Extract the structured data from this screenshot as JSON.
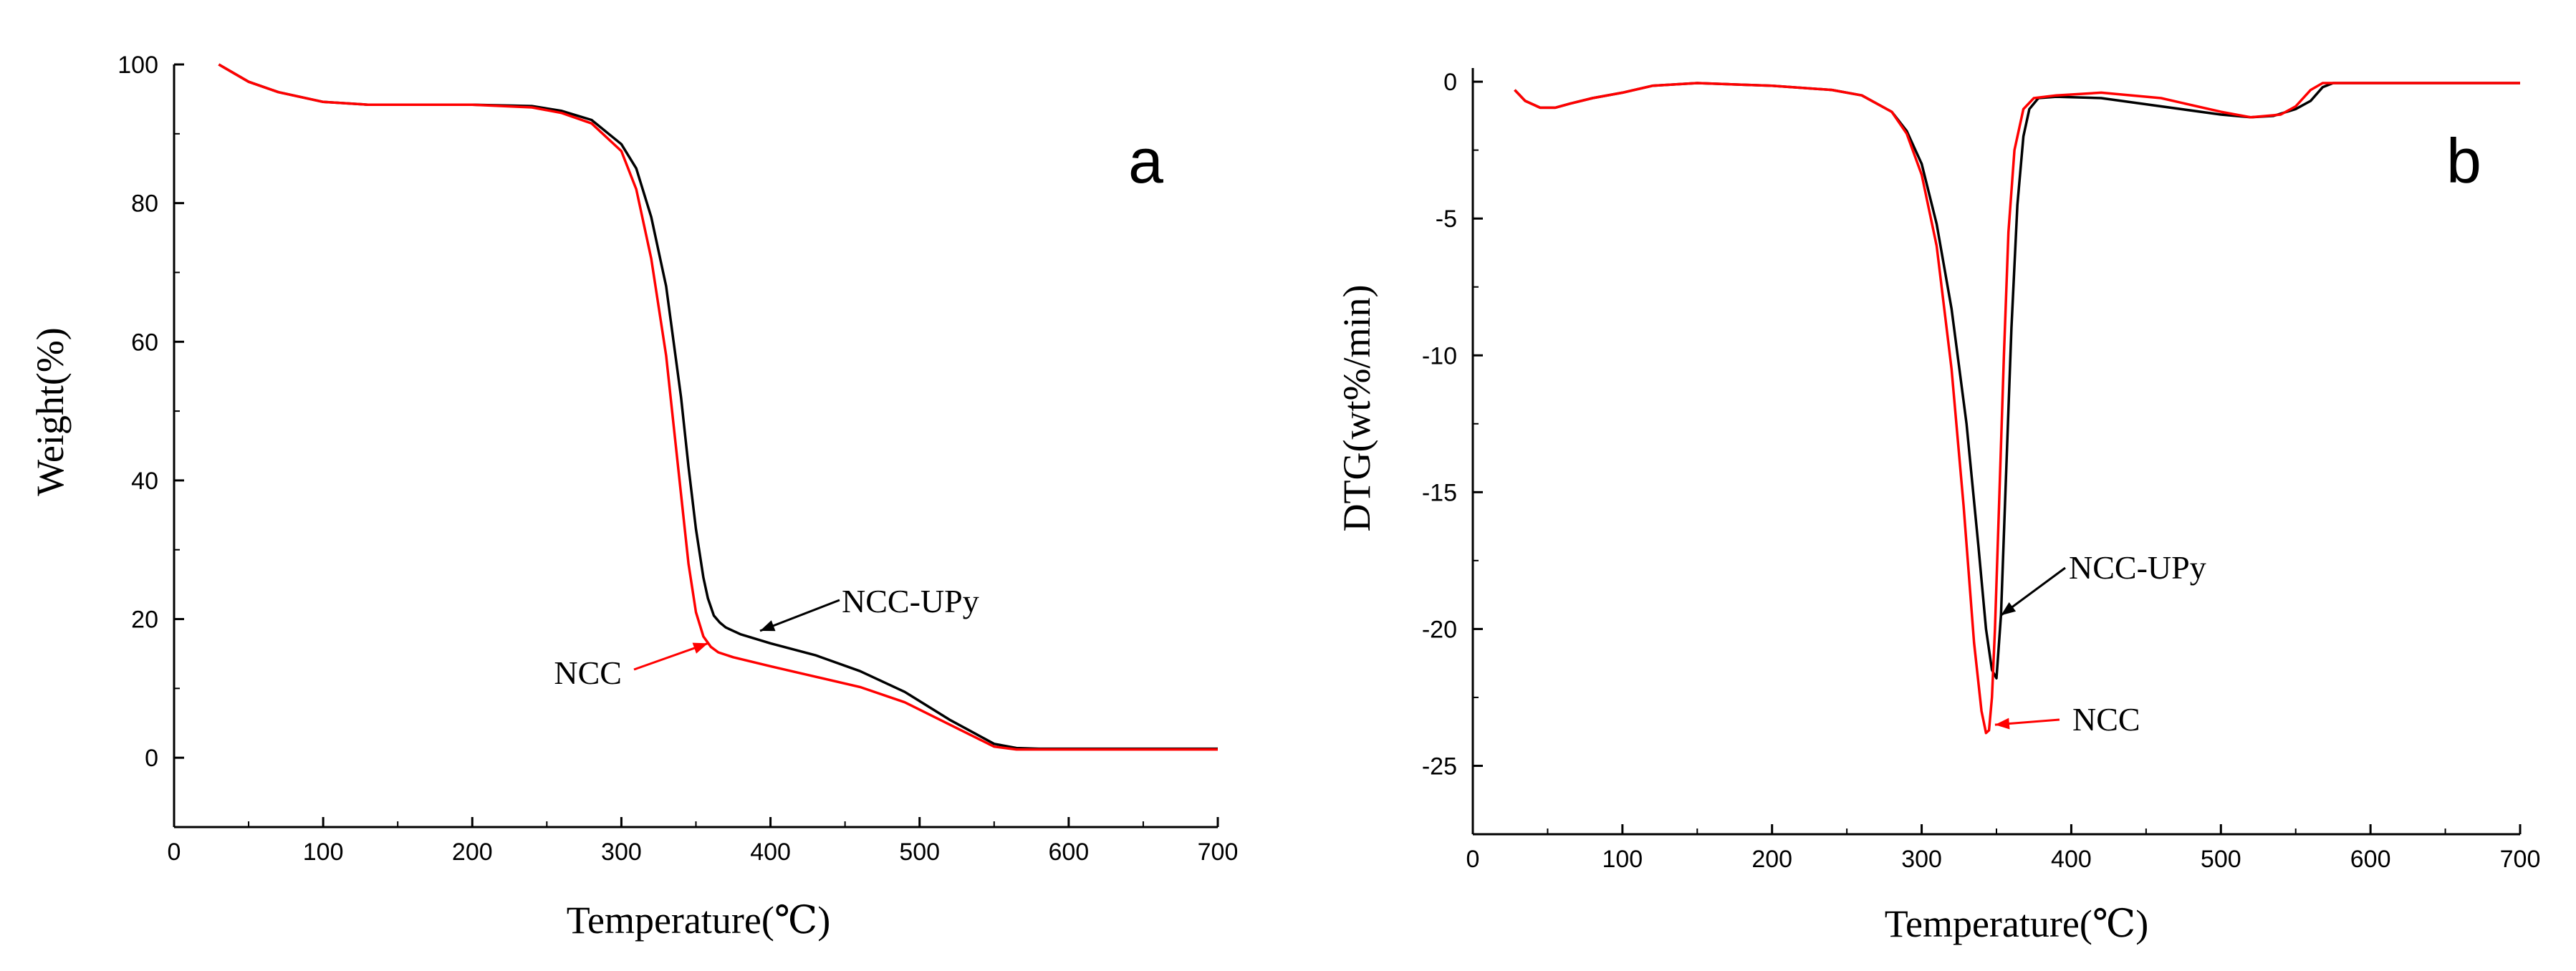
{
  "chart_data": [
    {
      "type": "line",
      "panel_label": "a",
      "xlabel": "Temperature(℃)",
      "ylabel": "Weight(%)",
      "xlim": [
        0,
        700
      ],
      "ylim": [
        -10,
        100
      ],
      "xticks": [
        0,
        100,
        200,
        300,
        400,
        500,
        600,
        700
      ],
      "yticks": [
        0,
        20,
        40,
        60,
        80,
        100
      ],
      "grid": false,
      "series": [
        {
          "name": "NCC-UPy",
          "color": "#000000",
          "x": [
            30,
            50,
            70,
            100,
            130,
            160,
            200,
            240,
            260,
            280,
            300,
            310,
            320,
            330,
            340,
            345,
            350,
            355,
            358,
            362,
            366,
            370,
            380,
            400,
            430,
            460,
            490,
            520,
            550,
            565,
            580,
            620,
            660,
            700
          ],
          "y": [
            100,
            97.5,
            96,
            94.6,
            94.2,
            94.2,
            94.2,
            94,
            93.3,
            92,
            88.5,
            85,
            78,
            68,
            52,
            42,
            33,
            26,
            23,
            20.5,
            19.5,
            18.8,
            17.8,
            16.5,
            14.8,
            12.5,
            9.5,
            5.5,
            2,
            1.4,
            1.3,
            1.3,
            1.3,
            1.3
          ]
        },
        {
          "name": "NCC",
          "color": "#ff0000",
          "x": [
            30,
            50,
            70,
            100,
            130,
            160,
            200,
            240,
            260,
            280,
            300,
            310,
            320,
            330,
            335,
            340,
            345,
            350,
            355,
            360,
            365,
            375,
            400,
            430,
            460,
            490,
            520,
            550,
            565,
            580,
            620,
            660,
            700
          ],
          "y": [
            100,
            97.5,
            96,
            94.6,
            94.2,
            94.2,
            94.2,
            93.8,
            93,
            91.5,
            87.5,
            82,
            72,
            58,
            48,
            38,
            28,
            21,
            17.5,
            16,
            15.2,
            14.5,
            13.2,
            11.7,
            10.2,
            8,
            4.8,
            1.6,
            1.2,
            1.2,
            1.2,
            1.2,
            1.2
          ]
        }
      ],
      "annotations": [
        {
          "text": "NCC-UPy",
          "color": "#000000",
          "arrow_to": [
            393,
            18.3
          ]
        },
        {
          "text": "NCC",
          "color": "#ff0000",
          "arrow_to": [
            358,
            16.5
          ]
        }
      ]
    },
    {
      "type": "line",
      "panel_label": "b",
      "xlabel": "Temperature(℃)",
      "ylabel": "DTG(wt%/min)",
      "xlim": [
        0,
        700
      ],
      "ylim": [
        -27.5,
        0.5
      ],
      "xticks": [
        0,
        100,
        200,
        300,
        400,
        500,
        600,
        700
      ],
      "yticks": [
        0,
        -5,
        -10,
        -15,
        -20,
        -25
      ],
      "grid": false,
      "series": [
        {
          "name": "NCC-UPy",
          "color": "#000000",
          "x": [
            28,
            35,
            45,
            55,
            65,
            80,
            100,
            120,
            150,
            200,
            240,
            260,
            280,
            290,
            300,
            310,
            320,
            330,
            338,
            343,
            347,
            350,
            353,
            356,
            360,
            364,
            368,
            372,
            378,
            390,
            420,
            460,
            500,
            520,
            535,
            550,
            560,
            568,
            575,
            600,
            650,
            700
          ],
          "y": [
            -0.3,
            -0.7,
            -0.95,
            -0.95,
            -0.8,
            -0.6,
            -0.4,
            -0.15,
            -0.05,
            -0.15,
            -0.3,
            -0.5,
            -1.1,
            -1.8,
            -3.0,
            -5.2,
            -8.3,
            -12.5,
            -17,
            -20.0,
            -21.5,
            -21.8,
            -19.5,
            -15,
            -9,
            -4.5,
            -2.0,
            -1.0,
            -0.6,
            -0.55,
            -0.6,
            -0.9,
            -1.2,
            -1.3,
            -1.25,
            -1.0,
            -0.7,
            -0.2,
            -0.05,
            -0.05,
            -0.05,
            -0.05
          ]
        },
        {
          "name": "NCC",
          "color": "#ff0000",
          "x": [
            28,
            35,
            45,
            55,
            65,
            80,
            100,
            120,
            150,
            200,
            240,
            260,
            280,
            290,
            300,
            310,
            320,
            328,
            335,
            340,
            343,
            345,
            347,
            349,
            352,
            355,
            358,
            362,
            368,
            375,
            390,
            420,
            460,
            500,
            520,
            540,
            550,
            560,
            568,
            575,
            600,
            650,
            700
          ],
          "y": [
            -0.3,
            -0.7,
            -0.95,
            -0.95,
            -0.8,
            -0.6,
            -0.4,
            -0.15,
            -0.05,
            -0.15,
            -0.3,
            -0.5,
            -1.1,
            -1.9,
            -3.4,
            -6.0,
            -10.5,
            -15.5,
            -20.5,
            -23.0,
            -23.8,
            -23.7,
            -22.5,
            -20,
            -15,
            -10,
            -5.5,
            -2.5,
            -1.0,
            -0.6,
            -0.5,
            -0.4,
            -0.6,
            -1.1,
            -1.3,
            -1.2,
            -0.9,
            -0.3,
            -0.05,
            -0.05,
            -0.05,
            -0.05,
            -0.05
          ]
        }
      ],
      "annotations": [
        {
          "text": "NCC-UPy",
          "color": "#000000",
          "arrow_to": [
            353,
            -19.5
          ]
        },
        {
          "text": "NCC",
          "color": "#ff0000",
          "arrow_to": [
            349,
            -23.5
          ]
        }
      ]
    }
  ]
}
